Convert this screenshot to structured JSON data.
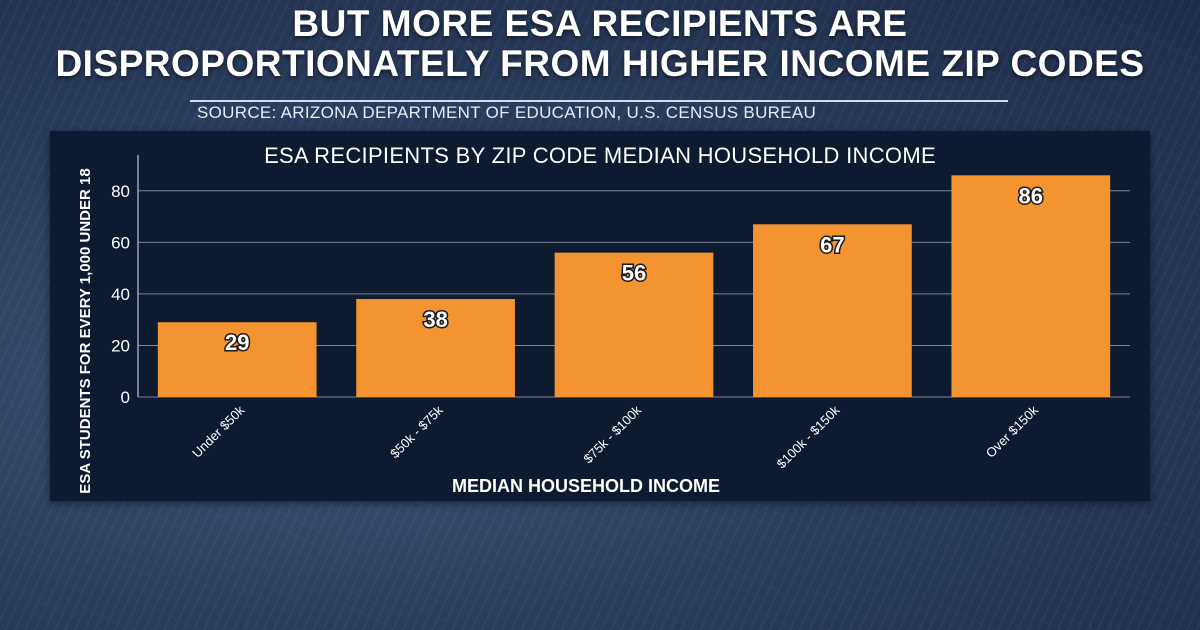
{
  "headline": {
    "line1": "BUT MORE ESA RECIPIENTS ARE",
    "line2": "DISPROPORTIONATELY FROM HIGHER INCOME ZIP CODES"
  },
  "source": "SOURCE: ARIZONA DEPARTMENT OF EDUCATION, U.S. CENSUS BUREAU",
  "colors": {
    "bar": "#f39431",
    "panel": "#0e1a2f",
    "grid": "#7a8597",
    "text": "#ffffff"
  },
  "chart_data": {
    "type": "bar",
    "title": "ESA RECIPIENTS BY ZIP CODE MEDIAN HOUSEHOLD INCOME",
    "xlabel": "MEDIAN HOUSEHOLD INCOME",
    "ylabel": "ESA STUDENTS FOR EVERY 1,000 UNDER 18",
    "categories": [
      "Under $50k",
      "$50k - $75k",
      "$75k - $100k",
      "$100k - $150k",
      "Over $150k"
    ],
    "values": [
      29,
      38,
      56,
      67,
      86
    ],
    "ylim": [
      0,
      90
    ],
    "yticks": [
      0,
      20,
      40,
      60,
      80
    ],
    "grid": true,
    "data_labels": true
  }
}
